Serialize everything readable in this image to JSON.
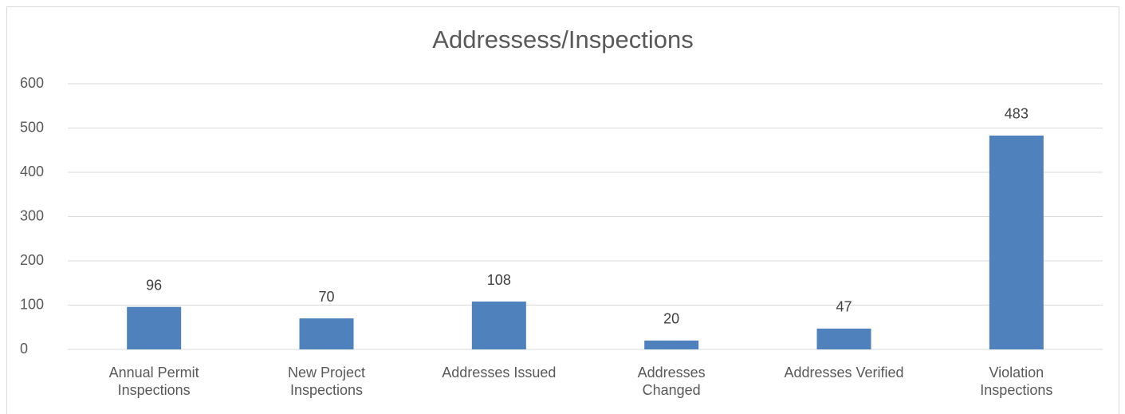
{
  "chart_data": {
    "type": "bar",
    "title": "Addressess/Inspections",
    "categories": [
      "Annual Permit Inspections",
      "New Project Inspections",
      "Addresses Issued",
      "Addresses Changed",
      "Addresses Verified",
      "Violation Inspections"
    ],
    "values": [
      96,
      70,
      108,
      20,
      47,
      483
    ],
    "color": "#4f81bd",
    "ylim": [
      0,
      600
    ],
    "yticks": [
      0,
      100,
      200,
      300,
      400,
      500,
      600
    ],
    "grid": true
  }
}
